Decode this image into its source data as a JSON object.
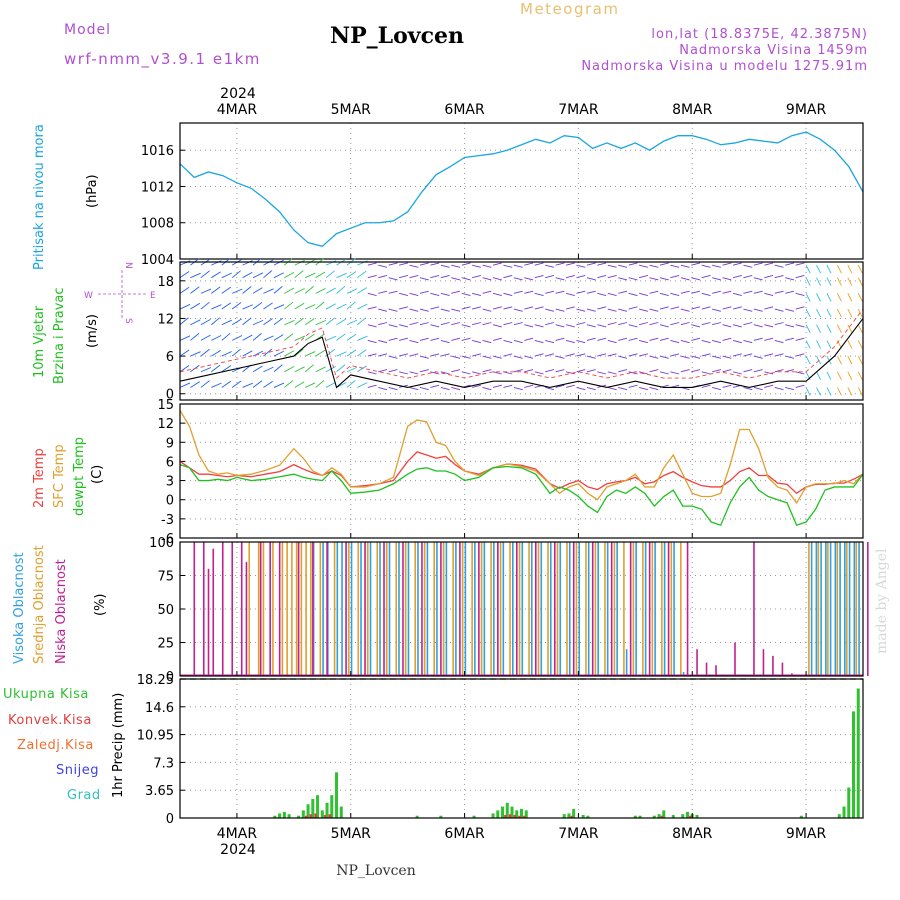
{
  "header": {
    "model_label": "Model",
    "model_name": "wrf-nmm_v3.9.1 e1km",
    "station": "NP_Lovcen",
    "meteogram": "Meteogram",
    "lonlat": "lon,lat (18.8375E, 42.3875N)",
    "elevation": "Nadmorska Visina 1459m",
    "model_elevation": "Nadmorska Visina u modelu 1275.91m",
    "watermark": "made by Angel",
    "footer_station": "NP_Lovcen"
  },
  "time_axis": {
    "year": "2024",
    "labels": [
      "4MAR",
      "5MAR",
      "6MAR",
      "7MAR",
      "8MAR",
      "9MAR"
    ],
    "label_hours": [
      12,
      36,
      60,
      84,
      108,
      132
    ],
    "range_hours": [
      0,
      144
    ]
  },
  "panel_labels": {
    "pressure": "Pritisak na nivou mora",
    "pressure_unit": "(hPa)",
    "wind1": "10m Vjetar",
    "wind2": "Brzina i Pravac",
    "wind_unit": "(m/s)",
    "compass_w": "W",
    "compass_e": "E",
    "compass_n": "N",
    "compass_s": "S",
    "temp1": "2m Temp",
    "temp2": "SFC Temp",
    "temp3": "dewpt Temp",
    "temp_unit": "(C)",
    "cloud1": "Visoka Oblacnost",
    "cloud2": "Srednja Oblacnost",
    "cloud3": "Niska Oblacnost",
    "cloud_unit": "(%)",
    "precip_unit": "1hr Precip (mm)",
    "precip_legend": [
      "Ukupna Kisa",
      "Konvek.Kisa",
      "Zaledj.Kisa",
      "Snijeg",
      "Grad"
    ]
  },
  "colors": {
    "pressure": "#1aa6e0",
    "temp2m": "#f04040",
    "sfc": "#e0a030",
    "dew": "#20c020",
    "high_cloud": "#30a0e0",
    "mid_cloud": "#e0a030",
    "low_cloud": "#c02090",
    "total_rain": "#30c030",
    "conv_rain": "#e04040",
    "frz_rain": "#f07030",
    "snow": "#4040e0",
    "hail": "#30c0c0",
    "title_purple": "#b050d0",
    "meteogram_gold": "#e8c070"
  },
  "chart_data": [
    {
      "type": "line",
      "name": "pressure",
      "ylim": [
        1004,
        1019
      ],
      "yticks": [
        1004,
        1008,
        1012,
        1016
      ],
      "x": [
        0,
        3,
        6,
        9,
        12,
        15,
        18,
        21,
        24,
        27,
        30,
        33,
        36,
        39,
        42,
        45,
        48,
        51,
        54,
        57,
        60,
        63,
        66,
        69,
        72,
        75,
        78,
        81,
        84,
        87,
        90,
        93,
        96,
        99,
        102,
        105,
        108,
        111,
        114,
        117,
        120,
        123,
        126,
        129,
        132,
        135,
        138,
        141,
        144
      ],
      "series": [
        {
          "values": [
            1014.5,
            1013.0,
            1013.6,
            1013.2,
            1012.4,
            1011.8,
            1010.6,
            1009.2,
            1007.2,
            1005.8,
            1005.4,
            1006.8,
            1007.4,
            1008.0,
            1008.0,
            1008.2,
            1009.2,
            1011.4,
            1013.3,
            1014.2,
            1015.2,
            1015.4,
            1015.6,
            1016.0,
            1016.6,
            1017.2,
            1016.8,
            1017.6,
            1017.4,
            1016.2,
            1016.8,
            1016.2,
            1016.8,
            1016.0,
            1017.0,
            1017.6,
            1017.6,
            1017.2,
            1016.6,
            1016.8,
            1017.2,
            1017.0,
            1016.8,
            1017.6,
            1018.0,
            1017.2,
            1016.0,
            1014.2,
            1011.4
          ]
        }
      ]
    },
    {
      "type": "line",
      "name": "wind",
      "ylim": [
        -1,
        21
      ],
      "yticks": [
        0,
        6,
        12,
        18
      ],
      "x": [
        0,
        6,
        12,
        18,
        24,
        27,
        30,
        33,
        36,
        42,
        48,
        54,
        60,
        66,
        72,
        78,
        84,
        90,
        96,
        102,
        108,
        114,
        120,
        126,
        132,
        138,
        144
      ],
      "series": [
        {
          "values": [
            2,
            3,
            4,
            5,
            6,
            8,
            9,
            1,
            3,
            2,
            1,
            2,
            1,
            2,
            2,
            1,
            2,
            1,
            2,
            1,
            1,
            2,
            1,
            2,
            2,
            6,
            12
          ]
        }
      ]
    },
    {
      "type": "line",
      "name": "temperature",
      "ylim": [
        -6,
        15
      ],
      "yticks": [
        -6,
        -3,
        0,
        3,
        6,
        9,
        12,
        15
      ],
      "x": [
        0,
        2,
        4,
        6,
        8,
        10,
        12,
        15,
        18,
        21,
        24,
        26,
        28,
        30,
        32,
        34,
        36,
        39,
        42,
        45,
        48,
        50,
        52,
        54,
        56,
        58,
        60,
        63,
        66,
        69,
        72,
        75,
        78,
        80,
        82,
        84,
        86,
        88,
        90,
        92,
        94,
        96,
        98,
        100,
        102,
        104,
        106,
        108,
        110,
        112,
        114,
        116,
        118,
        120,
        122,
        124,
        126,
        128,
        130,
        132,
        134,
        136,
        138,
        140,
        142,
        144
      ],
      "series": [
        {
          "values": [
            6.0,
            5.0,
            4.0,
            4.0,
            3.8,
            3.6,
            3.8,
            3.6,
            4.0,
            4.4,
            5.5,
            4.8,
            4.2,
            3.8,
            4.5,
            3.8,
            2.0,
            2.2,
            2.5,
            3.0,
            6.0,
            7.5,
            7.0,
            6.5,
            6.8,
            5.5,
            4.5,
            4.0,
            5.0,
            5.6,
            5.4,
            4.8,
            2.5,
            1.8,
            2.5,
            3.0,
            2.0,
            1.6,
            2.5,
            2.8,
            3.0,
            3.5,
            2.5,
            2.8,
            3.8,
            4.4,
            3.5,
            2.8,
            2.2,
            2.0,
            2.0,
            3.0,
            4.4,
            5.0,
            3.8,
            3.8,
            2.6,
            2.4,
            1.0,
            2.0,
            2.4,
            2.4,
            2.6,
            2.6,
            3.2,
            4.0
          ]
        },
        {
          "values": [
            14.0,
            11.5,
            7.0,
            4.5,
            4.0,
            4.2,
            3.8,
            4.0,
            4.6,
            5.4,
            8.0,
            6.5,
            4.5,
            3.8,
            5.0,
            4.0,
            2.0,
            2.0,
            2.5,
            3.5,
            11.5,
            12.5,
            12.2,
            9.0,
            8.5,
            6.0,
            4.5,
            3.8,
            5.0,
            5.6,
            5.2,
            4.5,
            2.5,
            1.0,
            2.0,
            2.5,
            1.0,
            0.0,
            2.0,
            2.5,
            3.0,
            4.0,
            2.0,
            2.0,
            5.0,
            7.0,
            4.0,
            1.0,
            0.5,
            0.5,
            1.0,
            5.5,
            11.0,
            11.0,
            8.0,
            3.5,
            2.0,
            1.5,
            -0.5,
            2.0,
            2.5,
            2.5,
            2.5,
            3.0,
            2.5,
            4.0
          ]
        },
        {
          "values": [
            5.5,
            5.0,
            3.0,
            3.0,
            3.2,
            3.0,
            3.5,
            3.0,
            3.2,
            3.6,
            4.0,
            3.5,
            3.2,
            3.0,
            4.5,
            3.0,
            1.0,
            1.2,
            1.5,
            2.5,
            4.0,
            4.8,
            5.0,
            4.5,
            4.5,
            4.0,
            3.0,
            3.5,
            5.0,
            5.2,
            5.0,
            4.0,
            1.0,
            2.0,
            1.5,
            0.5,
            -1.0,
            -2.0,
            0.5,
            1.5,
            1.0,
            2.0,
            1.0,
            -1.0,
            0.5,
            1.5,
            -1.0,
            -1.0,
            -1.5,
            -3.5,
            -4.0,
            -0.5,
            2.0,
            3.5,
            1.5,
            0.5,
            0.0,
            -0.5,
            -4.0,
            -3.5,
            -1.5,
            1.5,
            2.0,
            2.0,
            2.0,
            4.0
          ]
        }
      ]
    },
    {
      "type": "bar",
      "name": "cloud",
      "ylim": [
        0,
        100
      ],
      "yticks": [
        0,
        25,
        50,
        75,
        100
      ],
      "series": [
        {
          "x": [
            28,
            30,
            31,
            33,
            34,
            36,
            38,
            40,
            42,
            44,
            46,
            48,
            50,
            52,
            54,
            56,
            58,
            60,
            62,
            64,
            66,
            68,
            70,
            72,
            74,
            76,
            78,
            80,
            82,
            84,
            86,
            88,
            90,
            92,
            94,
            96,
            98,
            100,
            102,
            104,
            106,
            133,
            134,
            135,
            136,
            137,
            138,
            139,
            140,
            141,
            142,
            143
          ],
          "values": [
            100,
            100,
            100,
            100,
            100,
            100,
            100,
            100,
            100,
            100,
            100,
            100,
            100,
            100,
            100,
            100,
            100,
            100,
            100,
            100,
            100,
            100,
            100,
            100,
            100,
            100,
            100,
            100,
            100,
            100,
            100,
            100,
            100,
            100,
            20,
            100,
            100,
            100,
            100,
            100,
            3,
            100,
            100,
            100,
            100,
            100,
            100,
            100,
            100,
            100,
            100,
            100
          ]
        },
        {
          "x": [
            14,
            16,
            17,
            19,
            21,
            22,
            23,
            24,
            25,
            26,
            27,
            29,
            32,
            35,
            37,
            39,
            41,
            43,
            45,
            47,
            49,
            51,
            53,
            55,
            57,
            59,
            61,
            63,
            65,
            67,
            69,
            71,
            73,
            75,
            77,
            79,
            81,
            83,
            85,
            87,
            89,
            91,
            93,
            95,
            97,
            99,
            101,
            103,
            105,
            132,
            134,
            136,
            138,
            140,
            142
          ],
          "values": [
            100,
            100,
            100,
            100,
            100,
            100,
            100,
            100,
            100,
            100,
            100,
            100,
            100,
            100,
            100,
            100,
            100,
            100,
            100,
            100,
            100,
            100,
            100,
            100,
            100,
            100,
            100,
            100,
            100,
            100,
            100,
            100,
            100,
            100,
            100,
            100,
            100,
            100,
            100,
            100,
            100,
            100,
            100,
            100,
            100,
            100,
            100,
            100,
            100,
            100,
            100,
            100,
            100,
            100,
            100
          ]
        },
        {
          "x": [
            2,
            4,
            5,
            6,
            8,
            10,
            12,
            13,
            16,
            18,
            20,
            24,
            27,
            30,
            34,
            38,
            42,
            46,
            50,
            54,
            58,
            62,
            66,
            70,
            74,
            78,
            82,
            86,
            90,
            94,
            98,
            102,
            106,
            108,
            110,
            112,
            116,
            120,
            122,
            124,
            126,
            128,
            144
          ],
          "values": [
            100,
            100,
            80,
            95,
            100,
            100,
            100,
            85,
            100,
            100,
            100,
            100,
            100,
            100,
            100,
            100,
            100,
            100,
            100,
            100,
            100,
            100,
            100,
            100,
            100,
            100,
            100,
            100,
            100,
            100,
            100,
            100,
            100,
            20,
            10,
            8,
            25,
            100,
            20,
            15,
            10,
            2,
            100
          ]
        }
      ]
    },
    {
      "type": "bar",
      "name": "precipitation",
      "ylim": [
        0,
        18.25
      ],
      "yticks": [
        0,
        3.65,
        7.3,
        10.95,
        14.6,
        18.25
      ],
      "series": [
        {
          "x": [
            20,
            21,
            22,
            23,
            25,
            26,
            27,
            28,
            29,
            30,
            31,
            32,
            33,
            34,
            50,
            55,
            62,
            66,
            67,
            68,
            69,
            70,
            71,
            72,
            73,
            81,
            82,
            83,
            85,
            86,
            96,
            97,
            100,
            101,
            102,
            104,
            106,
            107,
            108,
            109,
            131,
            139,
            140,
            141,
            142,
            143
          ],
          "values": [
            0.3,
            0.6,
            0.8,
            0.5,
            0.3,
            1.0,
            1.8,
            2.5,
            3.0,
            1.0,
            2.0,
            3.0,
            6.0,
            1.5,
            0.3,
            0.3,
            0.3,
            0.6,
            1.0,
            1.5,
            2.0,
            1.5,
            1.0,
            1.2,
            1.0,
            0.5,
            0.6,
            1.2,
            0.4,
            0.3,
            0.3,
            0.3,
            0.3,
            0.5,
            1.0,
            0.4,
            0.5,
            0.8,
            0.5,
            0.4,
            0.3,
            0.5,
            1.5,
            4.0,
            14.0,
            17.0
          ]
        },
        {
          "x": [
            26,
            27,
            28,
            30,
            31,
            68,
            69,
            70,
            71,
            72,
            82,
            101,
            107
          ],
          "values": [
            0.3,
            0.5,
            0.6,
            0.4,
            0.5,
            0.4,
            0.5,
            0.4,
            0.3,
            0.3,
            0.3,
            0.3,
            0.3
          ]
        }
      ]
    }
  ]
}
